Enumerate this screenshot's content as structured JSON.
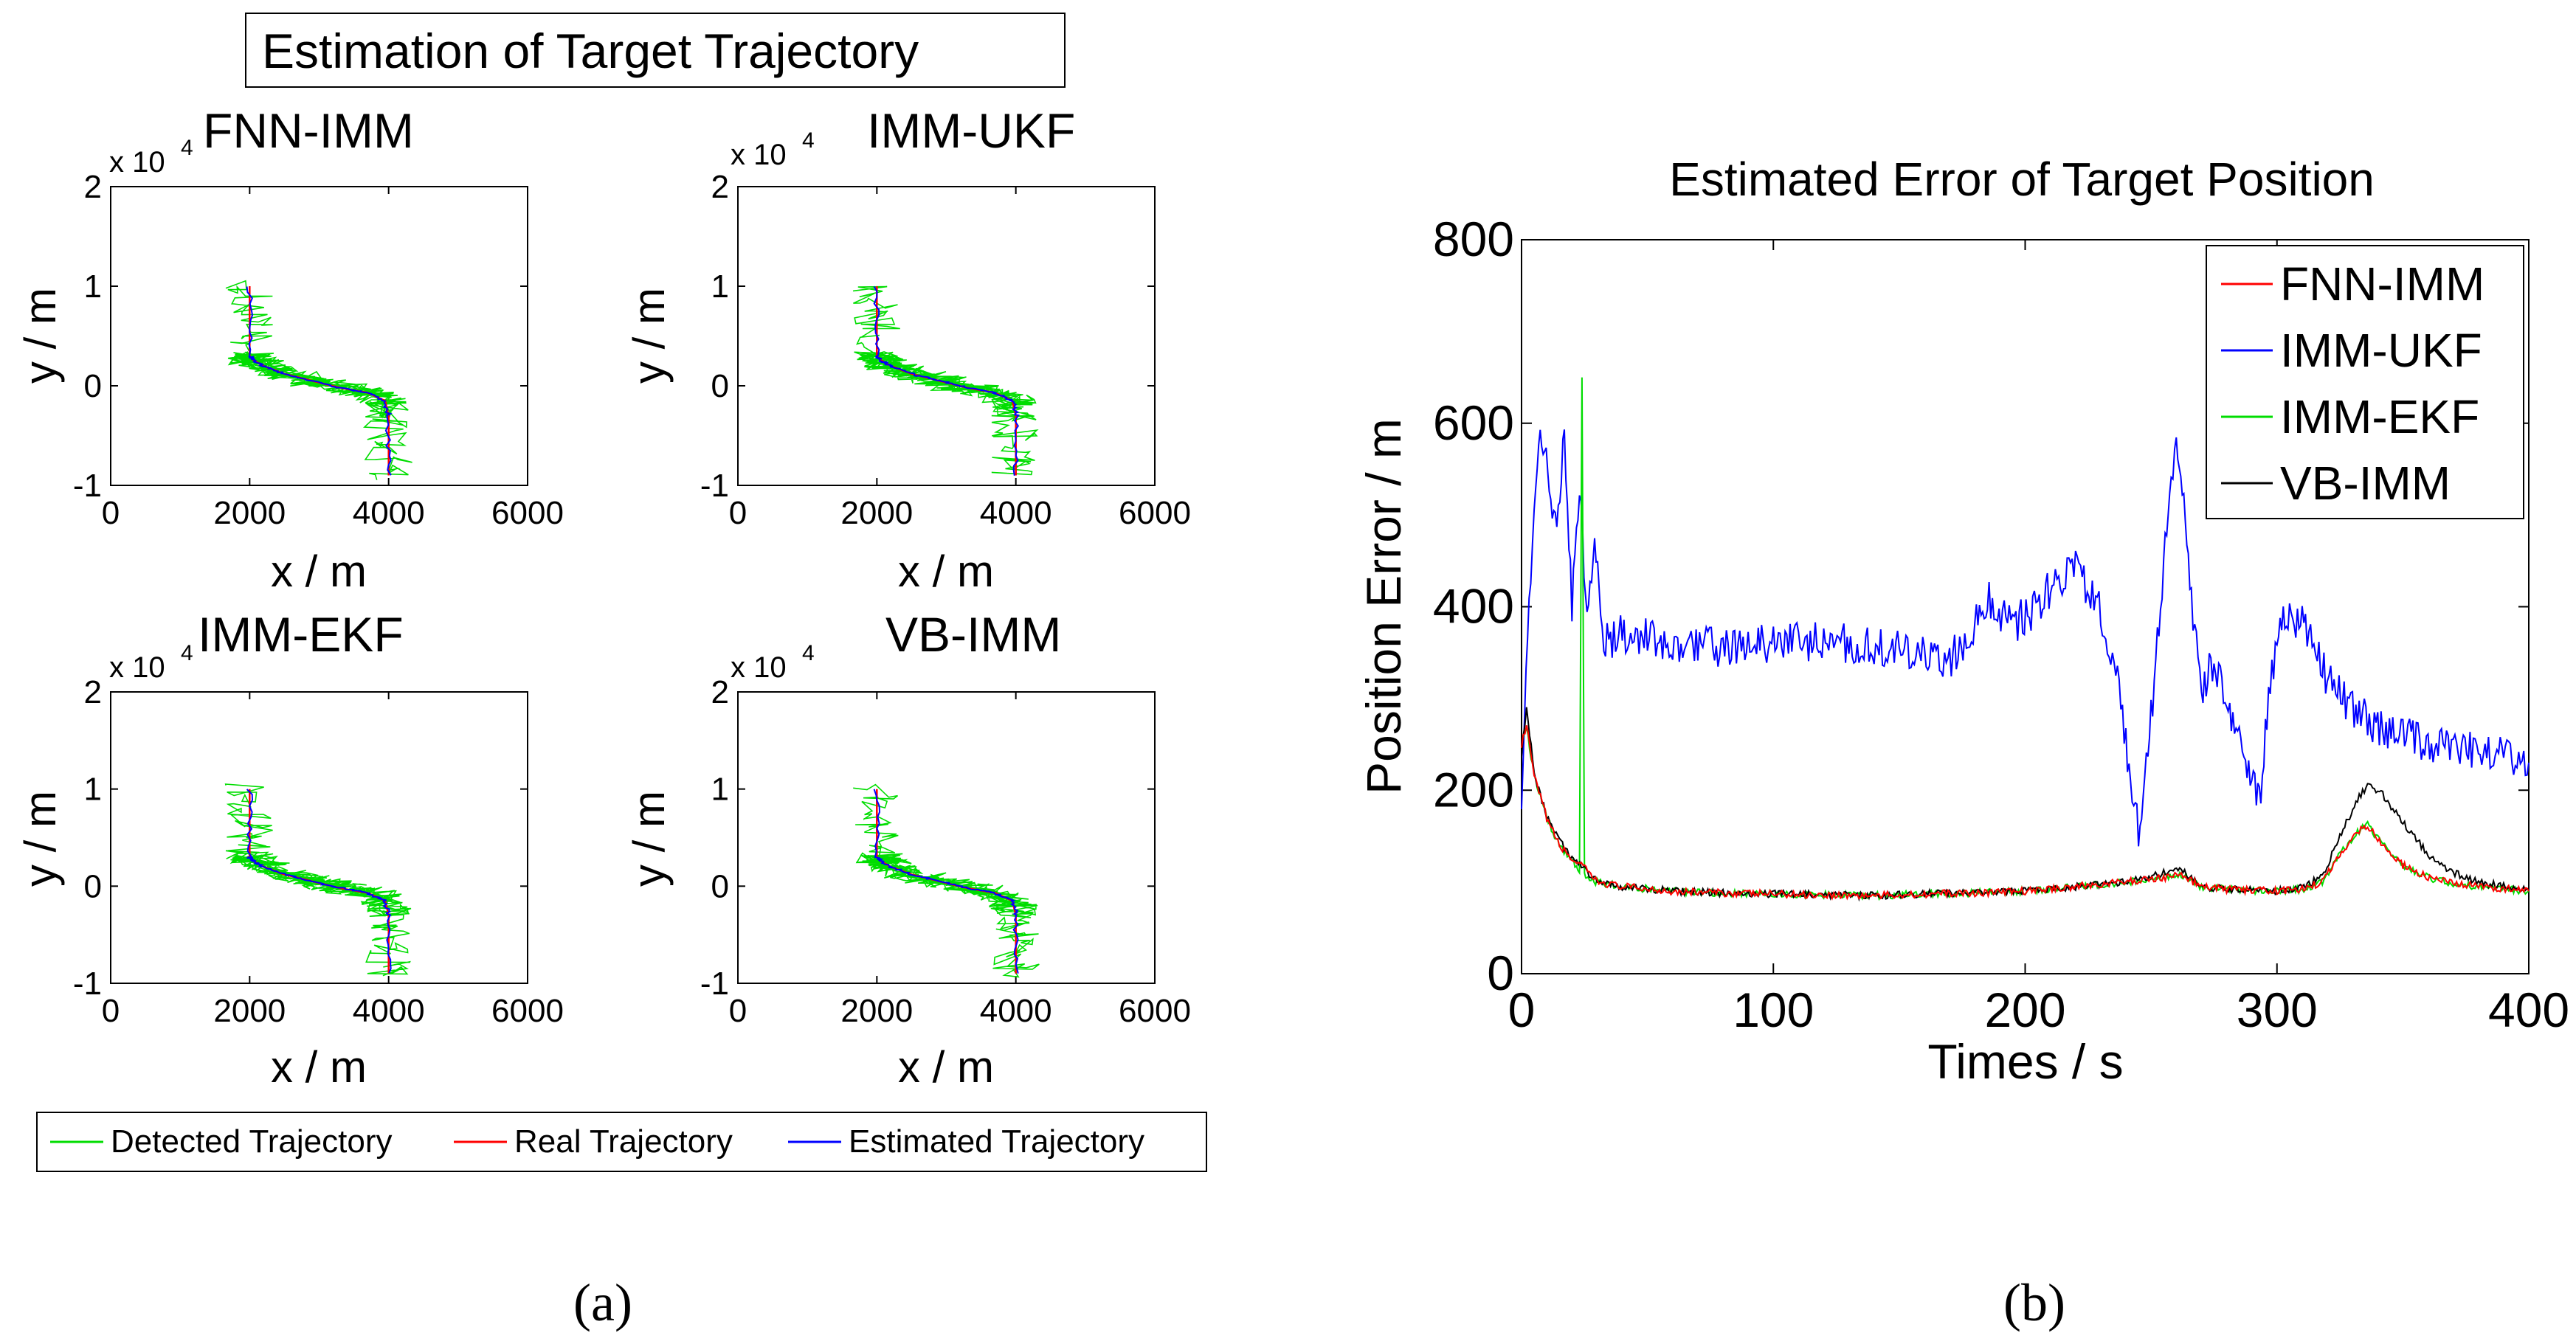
{
  "figure_labels": {
    "a": "(a)",
    "b": "(b)"
  },
  "chart_data": [
    {
      "type": "line",
      "panel": "a",
      "title": "Estimation of Target Trajectory",
      "xlabel": "x / m",
      "ylabel": "y / m",
      "exponent_base": "x 10",
      "exponent_power": "4",
      "xlim": [
        0,
        6000
      ],
      "ylim": [
        -10000,
        20000
      ],
      "xticks": [
        "0",
        "2000",
        "4000",
        "6000"
      ],
      "yticks": [
        "-1",
        "0",
        "1",
        "2"
      ],
      "subplots": [
        {
          "title": "FNN-IMM"
        },
        {
          "title": "IMM-UKF"
        },
        {
          "title": "IMM-EKF"
        },
        {
          "title": "VB-IMM"
        }
      ],
      "real_trajectory": {
        "x": [
          2000,
          2000,
          2050,
          2200,
          2500,
          2900,
          3300,
          3700,
          3950,
          4000,
          4000
        ],
        "y": [
          10000,
          3000,
          2600,
          2000,
          1200,
          500,
          -200,
          -700,
          -1500,
          -3000,
          -9000
        ]
      },
      "detected_noise_amplitude_m": 350,
      "legend": [
        {
          "label": "Detected Trajectory",
          "color": "#00dd00"
        },
        {
          "label": "Real Trajectory",
          "color": "#ff0000"
        },
        {
          "label": "Estimated Trajectory",
          "color": "#0000ff"
        }
      ]
    },
    {
      "type": "line",
      "panel": "b",
      "title": "Estimated Error of Target Position",
      "xlabel": "Times / s",
      "ylabel": "Position Error / m",
      "xlim": [
        0,
        400
      ],
      "ylim": [
        0,
        800
      ],
      "xticks": [
        "0",
        "100",
        "200",
        "300",
        "400"
      ],
      "yticks": [
        "0",
        "200",
        "400",
        "600",
        "800"
      ],
      "legend_position": "top-right",
      "series": [
        {
          "name": "FNN-IMM",
          "color": "#ff0000",
          "x": [
            0,
            2,
            5,
            10,
            15,
            20,
            25,
            30,
            40,
            60,
            80,
            100,
            120,
            140,
            160,
            180,
            200,
            220,
            240,
            255,
            262,
            270,
            280,
            300,
            310,
            318,
            325,
            332,
            336,
            342,
            350,
            360,
            370,
            380,
            390,
            400
          ],
          "y": [
            250,
            270,
            215,
            170,
            140,
            125,
            115,
            100,
            95,
            90,
            88,
            87,
            86,
            85,
            87,
            88,
            90,
            95,
            100,
            105,
            108,
            95,
            92,
            90,
            92,
            100,
            130,
            155,
            162,
            140,
            118,
            105,
            98,
            95,
            93,
            90
          ]
        },
        {
          "name": "IMM-UKF",
          "color": "#0000ff",
          "x": [
            0,
            3,
            5,
            8,
            11,
            14,
            17,
            20,
            23,
            26,
            29,
            32,
            40,
            60,
            80,
            100,
            120,
            140,
            160,
            170,
            180,
            185,
            195,
            205,
            212,
            220,
            228,
            236,
            240,
            245,
            250,
            255,
            258,
            260,
            263,
            266,
            270,
            275,
            280,
            285,
            290,
            293,
            296,
            300,
            305,
            310,
            320,
            330,
            340,
            360,
            380,
            400
          ],
          "y": [
            200,
            390,
            520,
            590,
            540,
            470,
            585,
            400,
            540,
            380,
            480,
            360,
            370,
            360,
            355,
            360,
            362,
            358,
            350,
            340,
            380,
            410,
            380,
            400,
            430,
            440,
            410,
            330,
            250,
            155,
            280,
            450,
            530,
            580,
            520,
            410,
            310,
            340,
            300,
            260,
            220,
            185,
            280,
            370,
            395,
            380,
            320,
            290,
            270,
            250,
            245,
            230
          ]
        },
        {
          "name": "IMM-EKF",
          "color": "#00dd00",
          "x": [
            0,
            2,
            5,
            10,
            15,
            20,
            23,
            24,
            25,
            26,
            27,
            30,
            40,
            60,
            80,
            100,
            120,
            140,
            160,
            180,
            200,
            220,
            240,
            255,
            262,
            270,
            280,
            300,
            310,
            318,
            325,
            332,
            336,
            342,
            350,
            360,
            370,
            380,
            390,
            400
          ],
          "y": [
            250,
            270,
            215,
            170,
            140,
            125,
            110,
            650,
            110,
            104,
            102,
            100,
            95,
            90,
            88,
            87,
            86,
            85,
            87,
            88,
            90,
            95,
            100,
            105,
            108,
            95,
            92,
            90,
            92,
            100,
            130,
            155,
            162,
            140,
            118,
            105,
            98,
            95,
            93,
            90
          ]
        },
        {
          "name": "VB-IMM",
          "color": "#000000",
          "x": [
            0,
            2,
            5,
            10,
            15,
            20,
            25,
            30,
            40,
            60,
            80,
            100,
            120,
            140,
            160,
            180,
            200,
            220,
            240,
            255,
            262,
            270,
            280,
            300,
            310,
            318,
            325,
            332,
            336,
            342,
            350,
            360,
            370,
            380,
            390,
            400
          ],
          "y": [
            240,
            290,
            220,
            170,
            145,
            125,
            115,
            100,
            95,
            90,
            88,
            87,
            86,
            85,
            87,
            88,
            90,
            95,
            100,
            110,
            113,
            95,
            92,
            90,
            95,
            105,
            150,
            190,
            205,
            195,
            165,
            130,
            110,
            100,
            95,
            92
          ]
        }
      ]
    }
  ]
}
